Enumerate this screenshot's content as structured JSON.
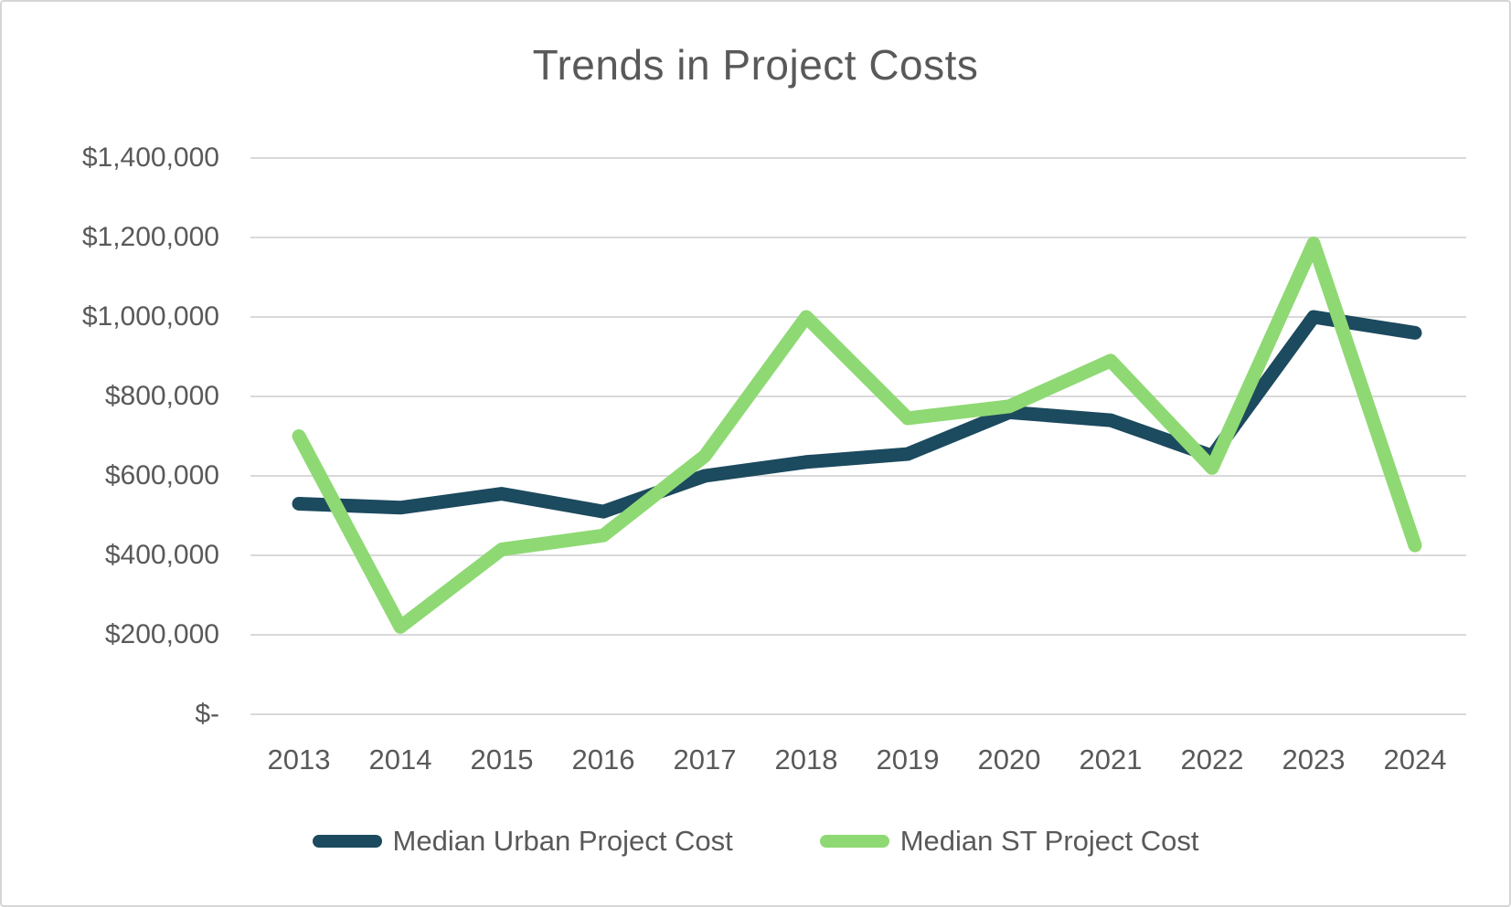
{
  "chart_data": {
    "type": "line",
    "title": "Trends in Project Costs",
    "categories": [
      "2013",
      "2014",
      "2015",
      "2016",
      "2017",
      "2018",
      "2019",
      "2020",
      "2021",
      "2022",
      "2023",
      "2024"
    ],
    "series": [
      {
        "name": "Median Urban Project Cost",
        "color": "#1C4A5E",
        "values": [
          530000,
          520000,
          555000,
          510000,
          600000,
          635000,
          655000,
          760000,
          740000,
          650000,
          1000000,
          960000
        ]
      },
      {
        "name": "Median ST Project Cost",
        "color": "#8ED973",
        "values": [
          700000,
          220000,
          415000,
          450000,
          650000,
          1000000,
          745000,
          775000,
          890000,
          620000,
          1185000,
          425000
        ]
      }
    ],
    "y_ticks": [
      {
        "value": 1400000,
        "label": "$1,400,000"
      },
      {
        "value": 1200000,
        "label": "$1,200,000"
      },
      {
        "value": 1000000,
        "label": "$1,000,000"
      },
      {
        "value": 800000,
        "label": "$800,000"
      },
      {
        "value": 600000,
        "label": "$600,000"
      },
      {
        "value": 400000,
        "label": "$400,000"
      },
      {
        "value": 200000,
        "label": "$200,000"
      },
      {
        "value": 0,
        "label": "$-"
      }
    ],
    "ylim": [
      0,
      1400000
    ],
    "xlabel": "",
    "ylabel": "",
    "grid": true,
    "legend_position": "bottom",
    "gridline_color": "#D9D9D9",
    "text_color": "#595959",
    "background_color": "#FFFFFF"
  }
}
